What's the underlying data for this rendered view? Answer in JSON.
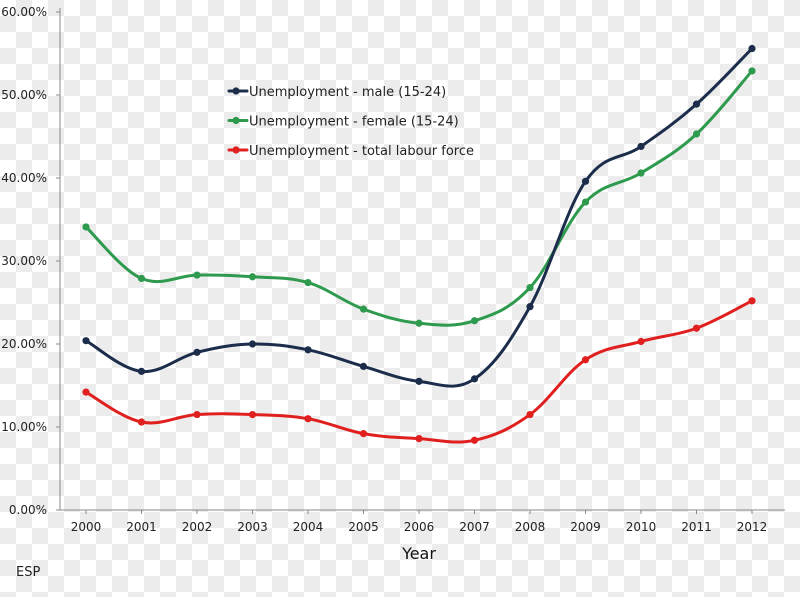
{
  "chart_data": {
    "type": "line",
    "x": [
      "2000",
      "2001",
      "2002",
      "2003",
      "2004",
      "2005",
      "2006",
      "2007",
      "2008",
      "2009",
      "2010",
      "2011",
      "2012"
    ],
    "xlabel": "Year",
    "ylabel": "",
    "ylim": [
      0,
      60
    ],
    "yticks": [
      "0.00%",
      "10.00%",
      "20.00%",
      "30.00%",
      "40.00%",
      "50.00%",
      "60.00%"
    ],
    "grid": false,
    "legend_position": "top-center",
    "series": [
      {
        "name": "Unemployment - male (15-24)",
        "color": "#1b2d4a",
        "values": [
          20.4,
          16.7,
          19.0,
          20.0,
          19.3,
          17.3,
          15.5,
          15.8,
          24.5,
          39.6,
          43.8,
          48.9,
          55.6
        ]
      },
      {
        "name": "Unemployment - female (15-24)",
        "color": "#2e9a4e",
        "values": [
          34.1,
          27.9,
          28.3,
          28.1,
          27.4,
          24.2,
          22.5,
          22.8,
          26.8,
          37.1,
          40.6,
          45.3,
          52.9
        ]
      },
      {
        "name": "Unemployment - total labour force",
        "color": "#e0201f",
        "values": [
          14.2,
          10.6,
          11.5,
          11.5,
          11.0,
          9.2,
          8.6,
          8.4,
          11.5,
          18.1,
          20.3,
          21.9,
          25.2
        ]
      }
    ]
  },
  "footer": {
    "country_code": "ESP"
  }
}
